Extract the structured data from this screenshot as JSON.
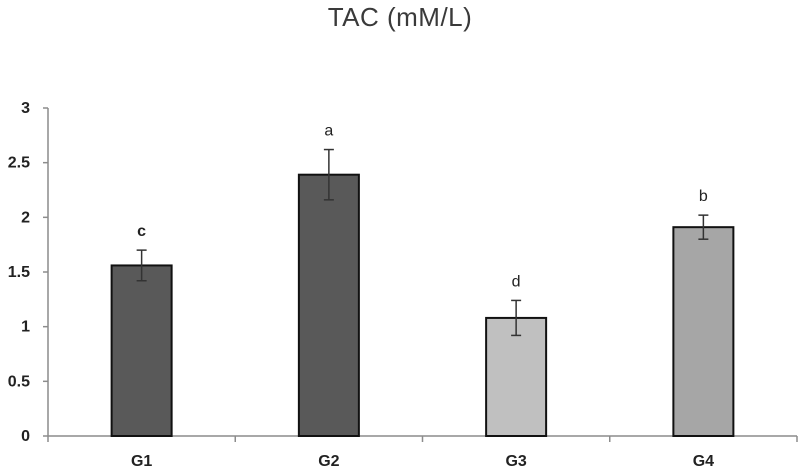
{
  "chart_data": {
    "type": "bar",
    "title": "TAC (mM/L)",
    "xlabel": "",
    "ylabel": "",
    "categories": [
      "G1",
      "G2",
      "G3",
      "G4"
    ],
    "values": [
      1.56,
      2.39,
      1.08,
      1.91
    ],
    "error": [
      0.14,
      0.23,
      0.16,
      0.11
    ],
    "significance_letters": [
      "c",
      "a",
      "d",
      "b"
    ],
    "significance_bold": [
      true,
      false,
      false,
      false
    ],
    "bar_colors": [
      "#595959",
      "#595959",
      "#c0c0c0",
      "#a6a6a6"
    ],
    "ylim": [
      0,
      3
    ],
    "yticks": [
      0,
      0.5,
      1,
      1.5,
      2,
      2.5,
      3
    ],
    "ytick_labels": [
      "0",
      "0.5",
      "1",
      "1.5",
      "2",
      "2.5",
      "3"
    ],
    "grid": false,
    "legend": "none"
  }
}
